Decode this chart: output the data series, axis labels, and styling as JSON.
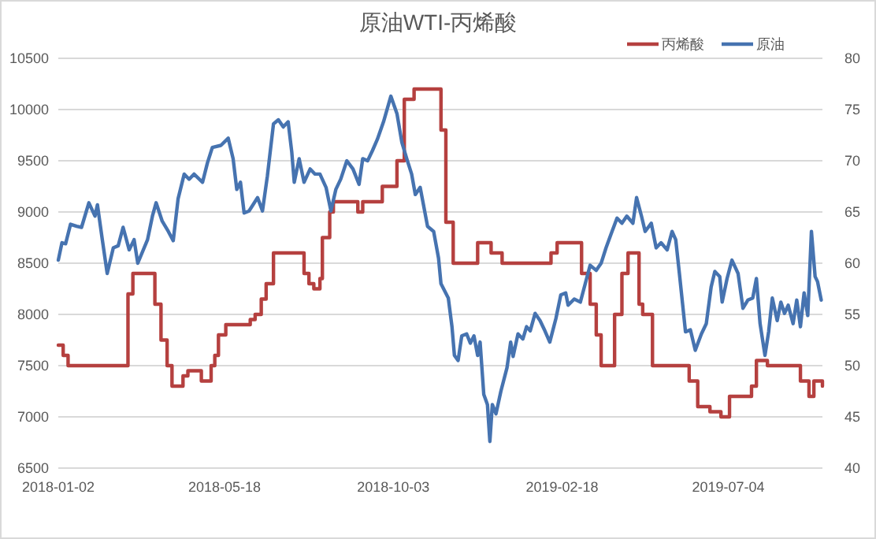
{
  "chart_data": {
    "type": "line",
    "title": "原油WTI-丙烯酸",
    "xlim": [
      "2018-01-02",
      "2019-09-19"
    ],
    "xticks": [
      "2018-01-02",
      "2018-05-18",
      "2018-10-03",
      "2019-02-18",
      "2019-07-04"
    ],
    "ylim": [
      6500,
      10500
    ],
    "yticks": [
      6500,
      7000,
      7500,
      8000,
      8500,
      9000,
      9500,
      10000,
      10500
    ],
    "y2lim": [
      40,
      80
    ],
    "y2ticks": [
      40,
      45,
      50,
      55,
      60,
      65,
      70,
      75,
      80
    ],
    "grid": "y",
    "legend": "top right",
    "marker": "none",
    "line_style": "solid",
    "series": [
      {
        "name": "丙烯酸",
        "type": "step",
        "color": "#b5403f",
        "x": [
          "2018-01-02",
          "2018-01-06",
          "2018-01-10",
          "2018-02-28",
          "2018-03-04",
          "2018-03-22",
          "2018-03-27",
          "2018-04-01",
          "2018-04-05",
          "2018-04-14",
          "2018-04-18",
          "2018-04-29",
          "2018-05-07",
          "2018-05-10",
          "2018-05-13",
          "2018-05-19",
          "2018-06-08",
          "2018-06-12",
          "2018-06-17",
          "2018-06-21",
          "2018-06-27",
          "2018-07-22",
          "2018-07-26",
          "2018-07-30",
          "2018-08-04",
          "2018-08-06",
          "2018-08-12",
          "2018-08-15",
          "2018-09-04",
          "2018-09-08",
          "2018-09-24",
          "2018-10-06",
          "2018-10-12",
          "2018-10-20",
          "2018-11-11",
          "2018-11-15",
          "2018-11-21",
          "2018-12-11",
          "2018-12-22",
          "2018-12-31",
          "2019-02-09",
          "2019-02-14",
          "2019-03-06",
          "2019-03-13",
          "2019-03-18",
          "2019-03-22",
          "2019-04-02",
          "2019-04-08",
          "2019-04-13",
          "2019-04-22",
          "2019-04-25",
          "2019-05-03",
          "2019-06-02",
          "2019-06-09",
          "2019-06-19",
          "2019-06-28",
          "2019-07-05",
          "2019-07-23",
          "2019-07-27",
          "2019-08-05",
          "2019-09-01",
          "2019-09-08",
          "2019-09-12",
          "2019-09-19"
        ],
        "values": [
          7700,
          7600,
          7500,
          8200,
          8400,
          8100,
          7750,
          7500,
          7300,
          7400,
          7450,
          7350,
          7500,
          7600,
          7800,
          7900,
          7950,
          8000,
          8150,
          8300,
          8600,
          8400,
          8300,
          8250,
          8350,
          8750,
          9000,
          9100,
          9000,
          9100,
          9250,
          9500,
          10100,
          10200,
          9800,
          8900,
          8500,
          8700,
          8600,
          8500,
          8600,
          8700,
          8400,
          8100,
          7800,
          7500,
          8000,
          8400,
          8600,
          8100,
          8000,
          7500,
          7350,
          7100,
          7050,
          7000,
          7200,
          7300,
          7550,
          7500,
          7350,
          7200,
          7350,
          7300
        ]
      },
      {
        "name": "原油",
        "type": "line",
        "axis": "y2",
        "color": "#4673b0",
        "x": [
          "2018-01-02",
          "2018-01-05",
          "2018-01-08",
          "2018-01-12",
          "2018-01-17",
          "2018-01-21",
          "2018-01-27",
          "2018-02-01",
          "2018-02-03",
          "2018-02-07",
          "2018-02-11",
          "2018-02-16",
          "2018-02-20",
          "2018-02-24",
          "2018-03-01",
          "2018-03-05",
          "2018-03-08",
          "2018-03-16",
          "2018-03-20",
          "2018-03-23",
          "2018-03-28",
          "2018-04-02",
          "2018-04-06",
          "2018-04-10",
          "2018-04-15",
          "2018-04-19",
          "2018-04-23",
          "2018-04-30",
          "2018-05-04",
          "2018-05-08",
          "2018-05-15",
          "2018-05-21",
          "2018-05-25",
          "2018-05-28",
          "2018-05-31",
          "2018-06-03",
          "2018-06-07",
          "2018-06-14",
          "2018-06-18",
          "2018-06-22",
          "2018-06-27",
          "2018-07-01",
          "2018-07-05",
          "2018-07-09",
          "2018-07-12",
          "2018-07-14",
          "2018-07-18",
          "2018-07-22",
          "2018-07-27",
          "2018-07-31",
          "2018-08-04",
          "2018-08-09",
          "2018-08-13",
          "2018-08-17",
          "2018-08-21",
          "2018-08-26",
          "2018-08-31",
          "2018-09-05",
          "2018-09-08",
          "2018-09-12",
          "2018-09-16",
          "2018-09-20",
          "2018-09-25",
          "2018-10-01",
          "2018-10-06",
          "2018-10-10",
          "2018-10-14",
          "2018-10-18",
          "2018-10-21",
          "2018-10-25",
          "2018-10-31",
          "2018-11-05",
          "2018-11-09",
          "2018-11-11",
          "2018-11-17",
          "2018-11-20",
          "2018-11-22",
          "2018-11-25",
          "2018-11-28",
          "2018-12-02",
          "2018-12-05",
          "2018-12-08",
          "2018-12-11",
          "2018-12-13",
          "2018-12-16",
          "2018-12-19",
          "2018-12-21",
          "2018-12-23",
          "2018-12-26",
          "2018-12-30",
          "2019-01-04",
          "2019-01-07",
          "2019-01-09",
          "2019-01-13",
          "2019-01-17",
          "2019-01-20",
          "2019-01-23",
          "2019-01-27",
          "2019-01-31",
          "2019-02-04",
          "2019-02-08",
          "2019-02-13",
          "2019-02-17",
          "2019-02-21",
          "2019-02-23",
          "2019-02-28",
          "2019-03-05",
          "2019-03-09",
          "2019-03-13",
          "2019-03-18",
          "2019-03-22",
          "2019-03-26",
          "2019-03-30",
          "2019-04-04",
          "2019-04-08",
          "2019-04-12",
          "2019-04-17",
          "2019-04-20",
          "2019-04-24",
          "2019-04-27",
          "2019-05-02",
          "2019-05-06",
          "2019-05-10",
          "2019-05-15",
          "2019-05-19",
          "2019-05-22",
          "2019-05-25",
          "2019-05-30",
          "2019-06-03",
          "2019-06-07",
          "2019-06-12",
          "2019-06-16",
          "2019-06-20",
          "2019-06-23",
          "2019-06-27",
          "2019-06-29",
          "2019-07-03",
          "2019-07-07",
          "2019-07-12",
          "2019-07-16",
          "2019-07-20",
          "2019-07-24",
          "2019-07-27",
          "2019-07-30",
          "2019-08-03",
          "2019-08-06",
          "2019-08-09",
          "2019-08-13",
          "2019-08-16",
          "2019-08-19",
          "2019-08-22",
          "2019-08-26",
          "2019-08-29",
          "2019-09-01",
          "2019-09-04",
          "2019-09-07",
          "2019-09-10",
          "2019-09-13",
          "2019-09-15",
          "2019-09-18"
        ],
        "values": [
          60.3,
          62.0,
          61.9,
          63.8,
          63.6,
          63.5,
          65.9,
          64.6,
          65.7,
          62.3,
          59.0,
          61.5,
          61.7,
          63.5,
          61.3,
          62.3,
          60.0,
          62.3,
          64.6,
          65.9,
          64.1,
          63.1,
          62.2,
          66.3,
          68.7,
          68.2,
          68.7,
          67.9,
          69.8,
          71.3,
          71.5,
          72.2,
          70.2,
          67.2,
          67.9,
          64.9,
          65.1,
          66.4,
          65.1,
          68.5,
          73.6,
          74.0,
          73.3,
          73.8,
          70.8,
          67.9,
          70.2,
          67.9,
          69.2,
          68.7,
          68.7,
          67.4,
          65.1,
          67.2,
          68.2,
          70.0,
          69.2,
          67.7,
          70.2,
          70.0,
          71.0,
          72.1,
          73.8,
          76.3,
          74.6,
          71.8,
          70.2,
          68.7,
          66.7,
          67.4,
          63.6,
          63.1,
          60.5,
          58.0,
          56.6,
          53.8,
          51.0,
          50.5,
          52.9,
          53.1,
          52.2,
          52.9,
          51.0,
          52.3,
          47.2,
          46.2,
          42.6,
          46.2,
          45.3,
          47.5,
          49.8,
          52.3,
          50.9,
          53.1,
          52.6,
          53.8,
          53.4,
          55.1,
          54.4,
          53.4,
          52.3,
          54.6,
          56.9,
          57.1,
          55.9,
          56.5,
          56.2,
          58.0,
          59.8,
          59.3,
          60.0,
          61.5,
          62.8,
          64.4,
          63.9,
          64.6,
          63.9,
          66.4,
          64.6,
          63.1,
          63.9,
          61.5,
          62.0,
          61.3,
          63.1,
          62.3,
          59.0,
          53.3,
          53.5,
          51.5,
          53.1,
          54.1,
          57.7,
          59.2,
          58.7,
          56.2,
          58.5,
          60.3,
          59.0,
          55.6,
          56.4,
          56.6,
          58.5,
          54.1,
          51.0,
          53.3,
          56.6,
          54.4,
          56.2,
          55.1,
          55.9,
          54.1,
          56.4,
          53.8,
          57.1,
          54.9,
          63.1,
          58.7,
          58.2,
          56.4
        ]
      }
    ]
  }
}
